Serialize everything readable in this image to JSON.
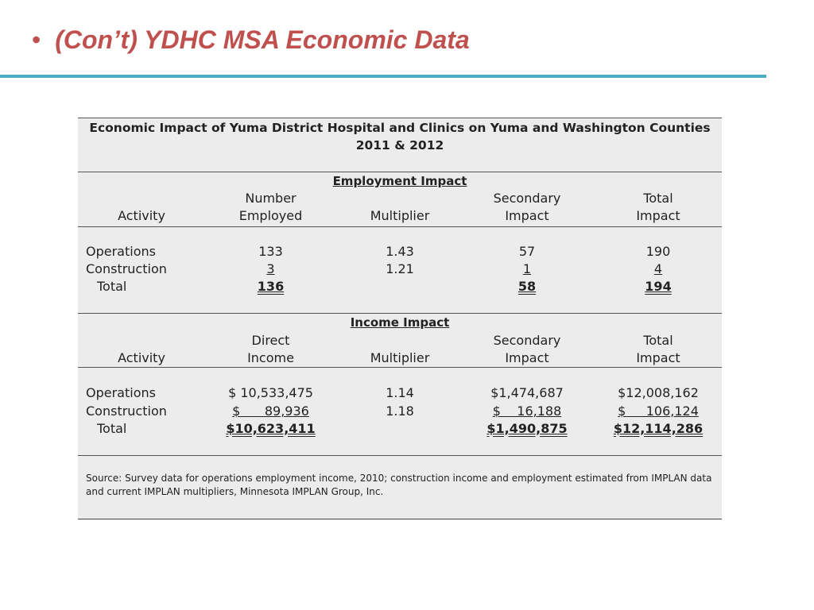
{
  "slide": {
    "bullet": "•",
    "title": "(Con’t) YDHC MSA Economic Data"
  },
  "table": {
    "caption_line1": "Economic Impact of Yuma District Hospital and Clinics on Yuma and Washington Counties",
    "caption_line2": "2011 & 2012",
    "employment": {
      "section_title": "Employment Impact",
      "headers": {
        "activity": "Activity",
        "col1_line1": "Number",
        "col1_line2": "Employed",
        "col2": "Multiplier",
        "col3_line1": "Secondary",
        "col3_line2": "Impact",
        "col4_line1": "Total",
        "col4_line2": "Impact"
      },
      "rows": [
        {
          "activity": "Operations",
          "direct": "133",
          "multiplier": "1.43",
          "secondary": "57",
          "total": "190"
        },
        {
          "activity": "Construction",
          "direct": "3",
          "multiplier": "1.21",
          "secondary": "1",
          "total": "4"
        }
      ],
      "total": {
        "activity": "Total",
        "direct": "136",
        "secondary": "58",
        "total": "194"
      }
    },
    "income": {
      "section_title": "Income Impact",
      "headers": {
        "activity": "Activity",
        "col1_line1": "Direct",
        "col1_line2": "Income",
        "col2": "Multiplier",
        "col3_line1": "Secondary",
        "col3_line2": "Impact",
        "col4_line1": "Total",
        "col4_line2": "Impact"
      },
      "rows": [
        {
          "activity": "Operations",
          "direct": "$ 10,533,475",
          "multiplier": "1.14",
          "secondary": "$1,474,687",
          "total": "$12,008,162"
        },
        {
          "activity": "Construction",
          "direct": "$      89,936",
          "multiplier": "1.18",
          "secondary": "$    16,188",
          "total": "$     106,124"
        }
      ],
      "total": {
        "activity": "Total",
        "direct": "$10,623,411",
        "secondary": "$1,490,875",
        "total": "$12,114,286"
      }
    },
    "source": "Source: Survey data for operations employment income, 2010; construction income and employment estimated from IMPLAN data and current IMPLAN multipliers, Minnesota IMPLAN Group, Inc."
  }
}
